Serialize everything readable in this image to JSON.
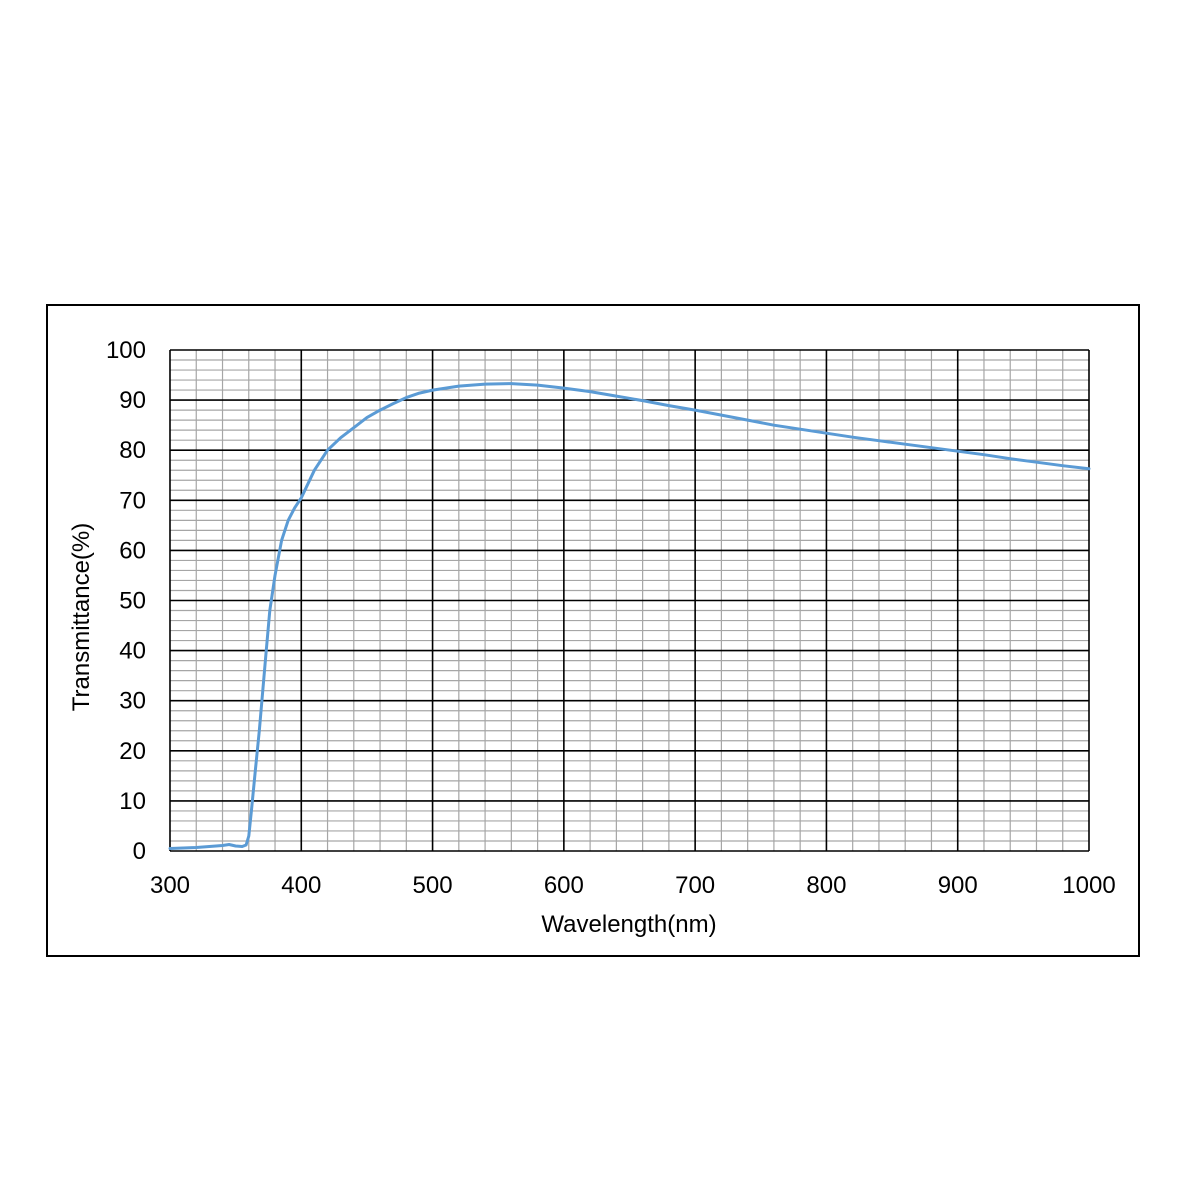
{
  "chart_data": {
    "type": "line",
    "title": "",
    "xlabel": "Wavelength(nm)",
    "ylabel": "Transmittance(%)",
    "xlim": [
      300,
      1000
    ],
    "ylim": [
      0,
      100
    ],
    "x_ticks": [
      300,
      400,
      500,
      600,
      700,
      800,
      900,
      1000
    ],
    "y_ticks": [
      0,
      10,
      20,
      30,
      40,
      50,
      60,
      70,
      80,
      90,
      100
    ],
    "grid": true,
    "legend": "none",
    "line_color": "#5B9BD5",
    "series": [
      {
        "x": [
          300,
          310,
          320,
          330,
          340,
          345,
          350,
          355,
          358,
          360,
          362,
          365,
          368,
          370,
          373,
          376,
          380,
          385,
          390,
          395,
          400,
          410,
          420,
          430,
          440,
          450,
          460,
          470,
          480,
          490,
          500,
          520,
          540,
          560,
          580,
          600,
          620,
          640,
          660,
          680,
          700,
          720,
          740,
          760,
          780,
          800,
          820,
          840,
          860,
          880,
          900,
          920,
          940,
          960,
          980,
          1000
        ],
        "y": [
          0.5,
          0.6,
          0.7,
          0.9,
          1.1,
          1.3,
          1.0,
          0.9,
          1.2,
          3.0,
          8.0,
          16.0,
          24.0,
          30.0,
          39.0,
          48.0,
          55.0,
          62.0,
          66.0,
          68.5,
          70.5,
          76.0,
          80.0,
          82.5,
          84.5,
          86.5,
          88.0,
          89.3,
          90.5,
          91.4,
          92.0,
          92.8,
          93.2,
          93.3,
          93.0,
          92.4,
          91.7,
          90.8,
          89.9,
          88.9,
          88.0,
          87.0,
          86.0,
          85.0,
          84.2,
          83.4,
          82.6,
          81.9,
          81.2,
          80.5,
          79.8,
          79.1,
          78.3,
          77.6,
          76.9,
          76.3
        ]
      }
    ]
  }
}
